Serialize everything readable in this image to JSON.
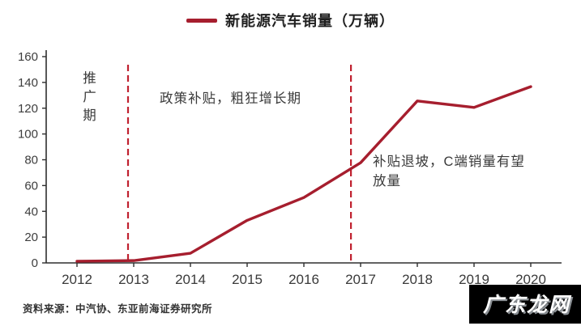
{
  "legend": {
    "label": "新能源汽车销量（万辆）"
  },
  "chart_data": {
    "type": "line",
    "title": "新能源汽车销量（万辆）",
    "categories": [
      "2012",
      "2013",
      "2014",
      "2015",
      "2016",
      "2017",
      "2018",
      "2019",
      "2020"
    ],
    "values": [
      1.3,
      1.8,
      7.5,
      33,
      50.7,
      77.7,
      125.6,
      120.6,
      136.7
    ],
    "xlabel": "",
    "ylabel": "",
    "ylim": [
      0,
      160
    ],
    "ytick_step": 20,
    "grid": false,
    "legend_position": "top-center",
    "line_color": "#a61e2e",
    "dashed_line_color": "#c0212f",
    "dashed_lines_x_index": [
      0.9,
      4.83
    ],
    "annotations": [
      "推广期",
      "政策补贴，粗狂增长期",
      "补贴退坡，C端销量有望放量"
    ]
  },
  "annotations": {
    "phase1": "推广期",
    "phase2": "政策补贴，粗狂增长期",
    "phase3": "补贴退坡，C端销量有望放量"
  },
  "source": {
    "text": "资料来源：中汽协、东亚前海证券研究所"
  },
  "watermark": {
    "text": "广东龙网"
  }
}
